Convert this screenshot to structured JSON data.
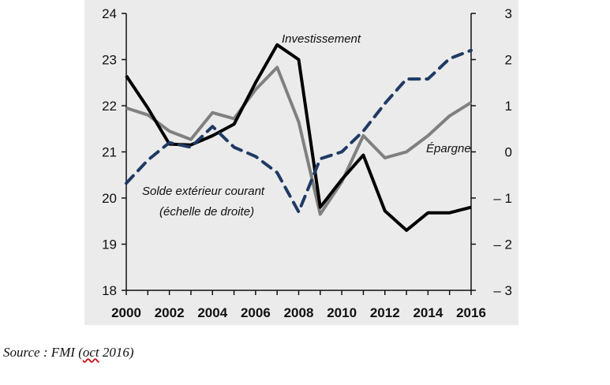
{
  "chart_data": {
    "type": "line",
    "x": [
      2000,
      2001,
      2002,
      2003,
      2004,
      2005,
      2006,
      2007,
      2008,
      2009,
      2010,
      2011,
      2012,
      2013,
      2014,
      2015,
      2016
    ],
    "x_ticks": [
      "2000",
      "2002",
      "2004",
      "2006",
      "2008",
      "2010",
      "2012",
      "2014",
      "2016"
    ],
    "left_axis": {
      "ylim": [
        18,
        24
      ],
      "ticks": [
        "18",
        "19",
        "20",
        "21",
        "22",
        "23",
        "24"
      ]
    },
    "right_axis": {
      "ylim": [
        -3,
        3
      ],
      "ticks": [
        "– 3",
        "– 2",
        "– 1",
        "0",
        "1",
        "2",
        "3"
      ]
    },
    "series": [
      {
        "name": "Investissement",
        "axis": "left",
        "color": "#000000",
        "style": "solid",
        "values": [
          22.65,
          21.95,
          21.17,
          21.15,
          21.35,
          21.6,
          22.5,
          23.32,
          23.0,
          19.8,
          20.4,
          20.93,
          19.72,
          19.3,
          19.68,
          19.68,
          19.8
        ]
      },
      {
        "name": "Épargne",
        "axis": "left",
        "color": "#808080",
        "style": "solid",
        "values": [
          21.95,
          21.8,
          21.45,
          21.27,
          21.85,
          21.72,
          22.35,
          22.83,
          21.65,
          19.65,
          20.35,
          21.35,
          20.87,
          21.0,
          21.35,
          21.78,
          22.07
        ]
      },
      {
        "name": "Solde extérieur courant (échelle de droite)",
        "axis": "right",
        "color": "#1f3b63",
        "style": "dashed",
        "values": [
          -0.68,
          -0.18,
          0.2,
          0.1,
          0.55,
          0.1,
          -0.1,
          -0.45,
          -1.3,
          -0.15,
          0.0,
          0.45,
          1.05,
          1.58,
          1.58,
          2.02,
          2.2
        ]
      }
    ],
    "annotations": {
      "investissement": "Investissement",
      "epargne": "Épargne",
      "solde_line1": "Solde extérieur courant",
      "solde_line2": "(échelle de droite)"
    }
  },
  "source": {
    "prefix": "Source : FMI (",
    "underlined": "oct",
    "suffix": " 2016)"
  }
}
